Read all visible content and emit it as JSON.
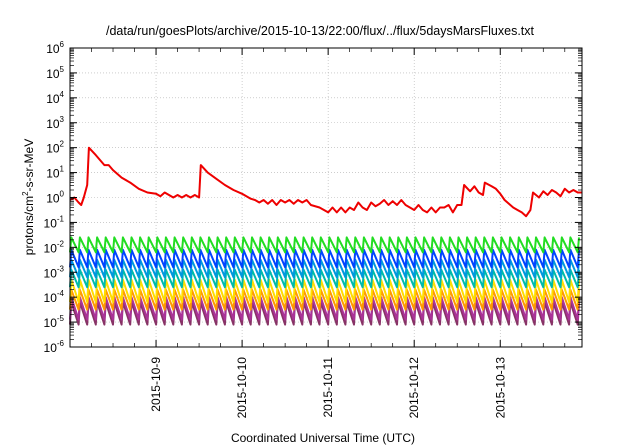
{
  "chart_data": {
    "type": "line",
    "title": "/data/run/goesPlots/archive/2015-10-13/22:00/flux/../flux/5daysMarsFluxes.txt",
    "xlabel": "Coordinated Universal Time (UTC)",
    "ylabel": "protons/cm²-s-sr-MeV",
    "ylabel_parts": {
      "pre": "protons/cm",
      "sup": "2",
      "post": "-s-sr-MeV"
    },
    "y_scale": "log",
    "ylim": [
      1e-06,
      1000000.0
    ],
    "xlim": [
      8.0,
      13.95
    ],
    "y_ticks": [
      {
        "base": "10",
        "exp": "-6",
        "value": -6
      },
      {
        "base": "10",
        "exp": "-5",
        "value": -5
      },
      {
        "base": "10",
        "exp": "-4",
        "value": -4
      },
      {
        "base": "10",
        "exp": "-3",
        "value": -3
      },
      {
        "base": "10",
        "exp": "-2",
        "value": -2
      },
      {
        "base": "10",
        "exp": "-1",
        "value": -1
      },
      {
        "base": "10",
        "exp": "0",
        "value": 0
      },
      {
        "base": "10",
        "exp": "1",
        "value": 1
      },
      {
        "base": "10",
        "exp": "2",
        "value": 2
      },
      {
        "base": "10",
        "exp": "3",
        "value": 3
      },
      {
        "base": "10",
        "exp": "4",
        "value": 4
      },
      {
        "base": "10",
        "exp": "5",
        "value": 5
      },
      {
        "base": "10",
        "exp": "6",
        "value": 6
      }
    ],
    "x_ticks": [
      {
        "label": "2015-10-9",
        "day": 9
      },
      {
        "label": "2015-10-10",
        "day": 10
      },
      {
        "label": "2015-10-11",
        "day": 11
      },
      {
        "label": "2015-10-12",
        "day": 12
      },
      {
        "label": "2015-10-13",
        "day": 13
      }
    ],
    "grid": true,
    "series": [
      {
        "color": "#ee0000",
        "points": [
          [
            8.0,
            -0.1
          ],
          [
            8.05,
            0.0
          ],
          [
            8.1,
            -0.2
          ],
          [
            8.13,
            -0.3
          ],
          [
            8.16,
            0.0
          ],
          [
            8.2,
            0.5
          ],
          [
            8.22,
            2.0
          ],
          [
            8.3,
            1.7
          ],
          [
            8.4,
            1.3
          ],
          [
            8.45,
            1.3
          ],
          [
            8.5,
            1.1
          ],
          [
            8.6,
            0.8
          ],
          [
            8.7,
            0.6
          ],
          [
            8.8,
            0.35
          ],
          [
            8.9,
            0.2
          ],
          [
            9.0,
            0.15
          ],
          [
            9.05,
            0.05
          ],
          [
            9.1,
            0.2
          ],
          [
            9.15,
            0.1
          ],
          [
            9.2,
            0.0
          ],
          [
            9.25,
            0.1
          ],
          [
            9.3,
            0.0
          ],
          [
            9.35,
            0.1
          ],
          [
            9.4,
            0.0
          ],
          [
            9.45,
            0.1
          ],
          [
            9.5,
            0.0
          ],
          [
            9.52,
            1.3
          ],
          [
            9.6,
            1.0
          ],
          [
            9.7,
            0.75
          ],
          [
            9.8,
            0.5
          ],
          [
            9.9,
            0.3
          ],
          [
            10.0,
            0.15
          ],
          [
            10.05,
            0.05
          ],
          [
            10.1,
            -0.05
          ],
          [
            10.15,
            -0.1
          ],
          [
            10.2,
            -0.2
          ],
          [
            10.25,
            -0.1
          ],
          [
            10.3,
            -0.25
          ],
          [
            10.35,
            -0.1
          ],
          [
            10.4,
            -0.3
          ],
          [
            10.45,
            -0.1
          ],
          [
            10.5,
            -0.2
          ],
          [
            10.55,
            -0.1
          ],
          [
            10.6,
            -0.25
          ],
          [
            10.65,
            -0.1
          ],
          [
            10.7,
            -0.2
          ],
          [
            10.75,
            -0.1
          ],
          [
            10.8,
            -0.3
          ],
          [
            10.9,
            -0.4
          ],
          [
            11.0,
            -0.6
          ],
          [
            11.05,
            -0.4
          ],
          [
            11.1,
            -0.6
          ],
          [
            11.15,
            -0.4
          ],
          [
            11.2,
            -0.6
          ],
          [
            11.25,
            -0.4
          ],
          [
            11.3,
            -0.5
          ],
          [
            11.35,
            -0.2
          ],
          [
            11.4,
            -0.4
          ],
          [
            11.45,
            -0.5
          ],
          [
            11.5,
            -0.2
          ],
          [
            11.55,
            -0.35
          ],
          [
            11.6,
            -0.25
          ],
          [
            11.65,
            -0.1
          ],
          [
            11.7,
            -0.3
          ],
          [
            11.75,
            -0.15
          ],
          [
            11.8,
            -0.3
          ],
          [
            11.85,
            -0.1
          ],
          [
            11.9,
            -0.3
          ],
          [
            11.95,
            -0.4
          ],
          [
            12.0,
            -0.5
          ],
          [
            12.05,
            -0.3
          ],
          [
            12.1,
            -0.5
          ],
          [
            12.15,
            -0.6
          ],
          [
            12.2,
            -0.4
          ],
          [
            12.25,
            -0.6
          ],
          [
            12.3,
            -0.4
          ],
          [
            12.35,
            -0.4
          ],
          [
            12.4,
            -0.3
          ],
          [
            12.45,
            -0.6
          ],
          [
            12.5,
            -0.3
          ],
          [
            12.55,
            -0.3
          ],
          [
            12.58,
            0.5
          ],
          [
            12.65,
            0.25
          ],
          [
            12.7,
            0.45
          ],
          [
            12.75,
            0.2
          ],
          [
            12.8,
            0.1
          ],
          [
            12.82,
            0.6
          ],
          [
            12.9,
            0.45
          ],
          [
            12.95,
            0.35
          ],
          [
            13.0,
            0.15
          ],
          [
            13.05,
            -0.1
          ],
          [
            13.1,
            -0.25
          ],
          [
            13.15,
            -0.4
          ],
          [
            13.2,
            -0.5
          ],
          [
            13.25,
            -0.6
          ],
          [
            13.3,
            -0.75
          ],
          [
            13.35,
            -0.5
          ],
          [
            13.38,
            0.2
          ],
          [
            13.45,
            0.0
          ],
          [
            13.5,
            0.25
          ],
          [
            13.55,
            0.1
          ],
          [
            13.6,
            0.3
          ],
          [
            13.65,
            0.2
          ],
          [
            13.7,
            0.05
          ],
          [
            13.75,
            0.35
          ],
          [
            13.8,
            0.2
          ],
          [
            13.85,
            0.3
          ],
          [
            13.9,
            0.2
          ],
          [
            13.95,
            0.2
          ]
        ]
      },
      {
        "color": "#22dd22",
        "sawtooth": {
          "high": -1.6,
          "low": -2.2,
          "period": 0.1
        }
      },
      {
        "color": "#0044ff",
        "sawtooth": {
          "high": -2.1,
          "low": -2.8,
          "period": 0.1
        }
      },
      {
        "color": "#0099dd",
        "sawtooth": {
          "high": -2.5,
          "low": -3.2,
          "period": 0.1
        }
      },
      {
        "color": "#00bbaa",
        "sawtooth": {
          "high": -2.9,
          "low": -3.6,
          "period": 0.1
        }
      },
      {
        "color": "#ffdd00",
        "sawtooth": {
          "high": -3.3,
          "low": -4.2,
          "period": 0.1
        }
      },
      {
        "color": "#ff9900",
        "sawtooth": {
          "high": -3.7,
          "low": -4.5,
          "period": 0.1
        }
      },
      {
        "color": "#aa3399",
        "sawtooth": {
          "high": -4.0,
          "low": -4.9,
          "period": 0.1
        }
      },
      {
        "color": "#883366",
        "sawtooth": {
          "high": -4.2,
          "low": -5.1,
          "period": 0.1
        }
      }
    ]
  }
}
